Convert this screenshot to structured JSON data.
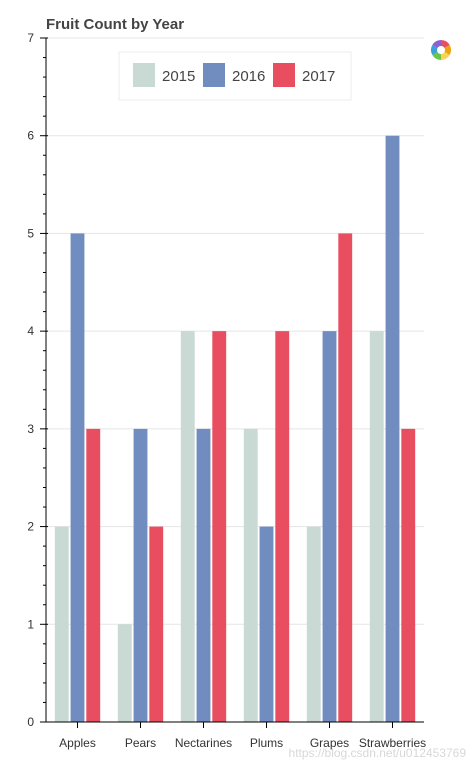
{
  "chart_data": {
    "type": "bar",
    "title": "Fruit Count by Year",
    "categories": [
      "Apples",
      "Pears",
      "Nectarines",
      "Plums",
      "Grapes",
      "Strawberries"
    ],
    "series": [
      {
        "name": "2015",
        "color": "#c9d9d3",
        "values": [
          2,
          1,
          4,
          3,
          2,
          4
        ]
      },
      {
        "name": "2016",
        "color": "#718dbf",
        "values": [
          5,
          3,
          3,
          2,
          4,
          6
        ]
      },
      {
        "name": "2017",
        "color": "#e84d60",
        "values": [
          3,
          2,
          4,
          4,
          5,
          3
        ]
      }
    ],
    "yticks": [
      0,
      1,
      2,
      3,
      4,
      5,
      6,
      7
    ],
    "ylim": [
      0,
      7
    ],
    "grid": true,
    "legend": "top-center",
    "xlabel": "",
    "ylabel": ""
  },
  "watermark": "https://blog.csdn.net/u012453769",
  "toolbar": {
    "logo_icon": "bokeh-logo-icon"
  }
}
